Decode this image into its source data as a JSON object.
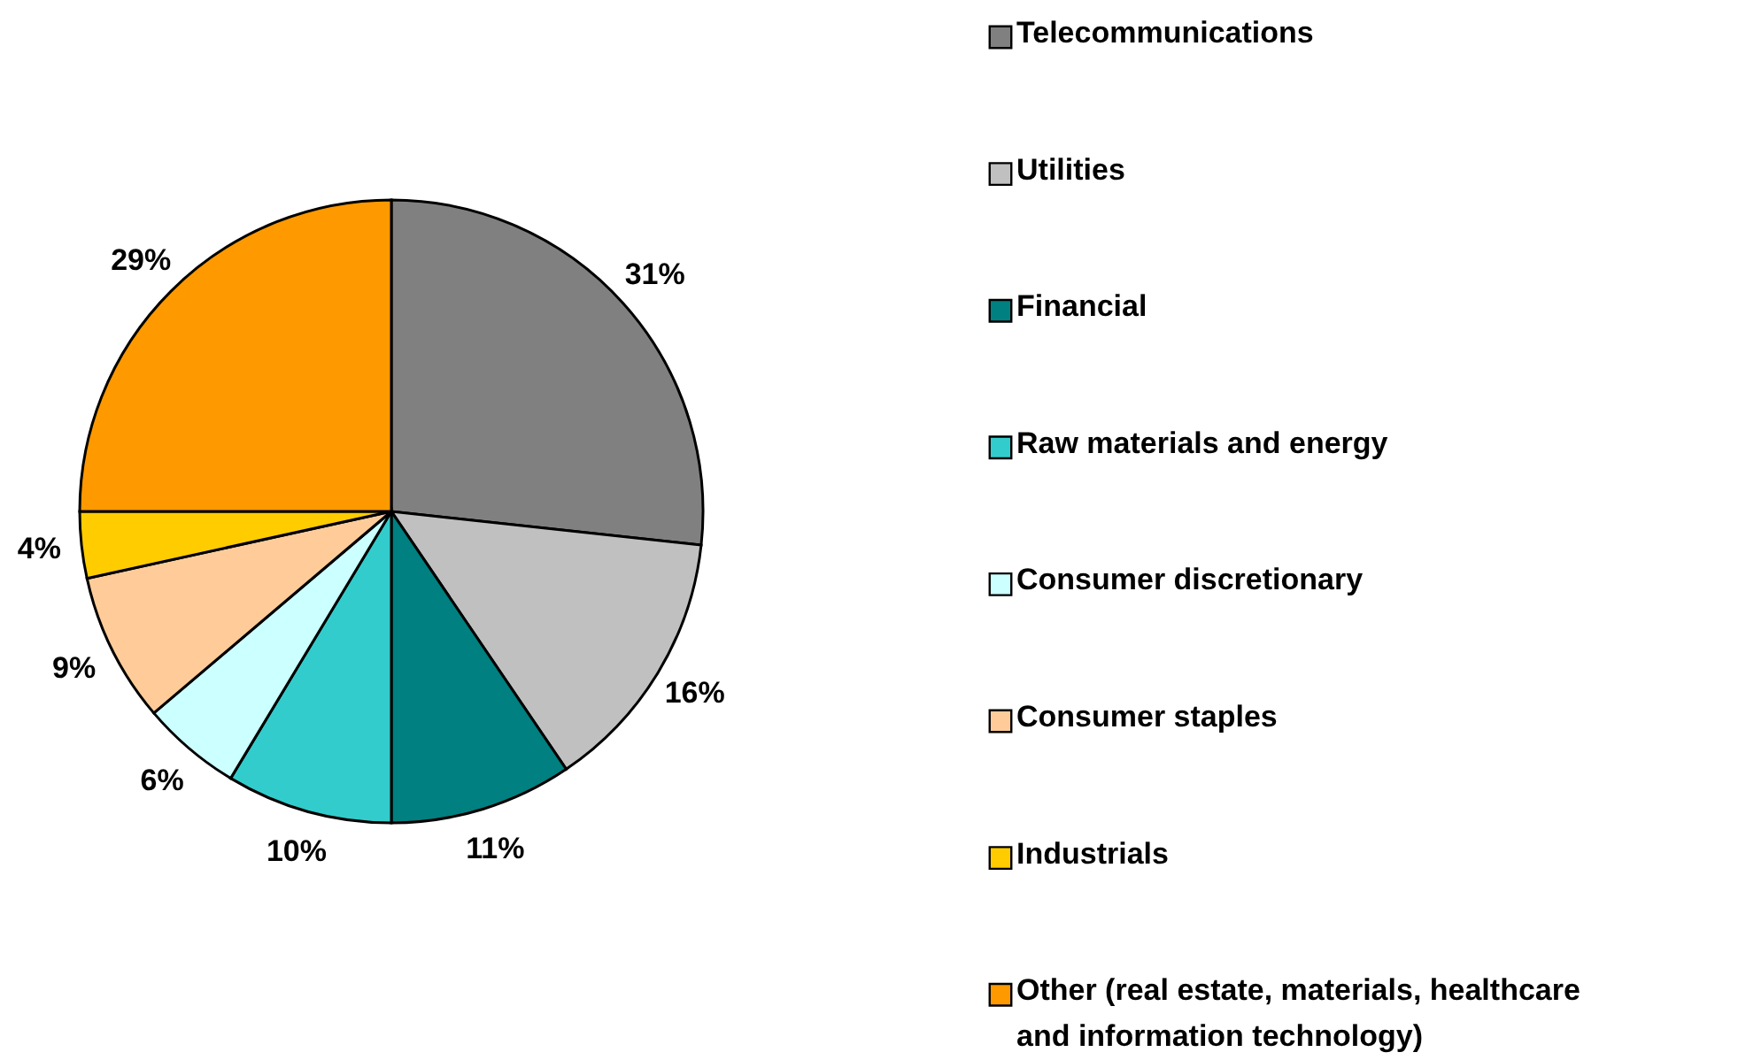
{
  "chart_data": {
    "type": "pie",
    "categories": [
      "Telecommunications",
      "Utilities",
      "Financial",
      "Raw materials and energy",
      "Consumer discretionary",
      "Consumer staples",
      "Industrials",
      "Other (real estate, materials, healthcare and information technology)"
    ],
    "values": [
      31,
      16,
      11,
      10,
      6,
      9,
      4,
      29
    ],
    "value_labels": [
      "31%",
      "16%",
      "11%",
      "10%",
      "6%",
      "9%",
      "4%",
      "29%"
    ],
    "colors": [
      "#808080",
      "#c0c0c0",
      "#008080",
      "#33cccc",
      "#ccffff",
      "#ffcc99",
      "#ffcc00",
      "#ff9900"
    ],
    "legend": "right"
  }
}
